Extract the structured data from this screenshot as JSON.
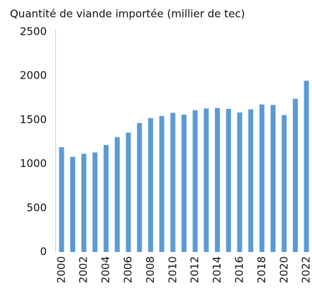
{
  "chart_data": {
    "type": "bar",
    "title": "Quantité de viande importée (millier de tec)",
    "categories": [
      "2000",
      null,
      "2002",
      null,
      "2004",
      null,
      "2006",
      null,
      "2008",
      null,
      "2010",
      null,
      "2012",
      null,
      "2014",
      null,
      "2016",
      null,
      "2018",
      null,
      "2020",
      null,
      "2022"
    ],
    "values": [
      1190,
      1080,
      1115,
      1130,
      1215,
      1305,
      1355,
      1465,
      1520,
      1545,
      1580,
      1560,
      1610,
      1630,
      1635,
      1625,
      1585,
      1620,
      1675,
      1670,
      1555,
      1740,
      1945
    ],
    "color": "#5b9bd5",
    "ylim": [
      0,
      2500
    ],
    "yticks": [
      0,
      500,
      1000,
      1500,
      2000,
      2500
    ],
    "grid": false
  }
}
